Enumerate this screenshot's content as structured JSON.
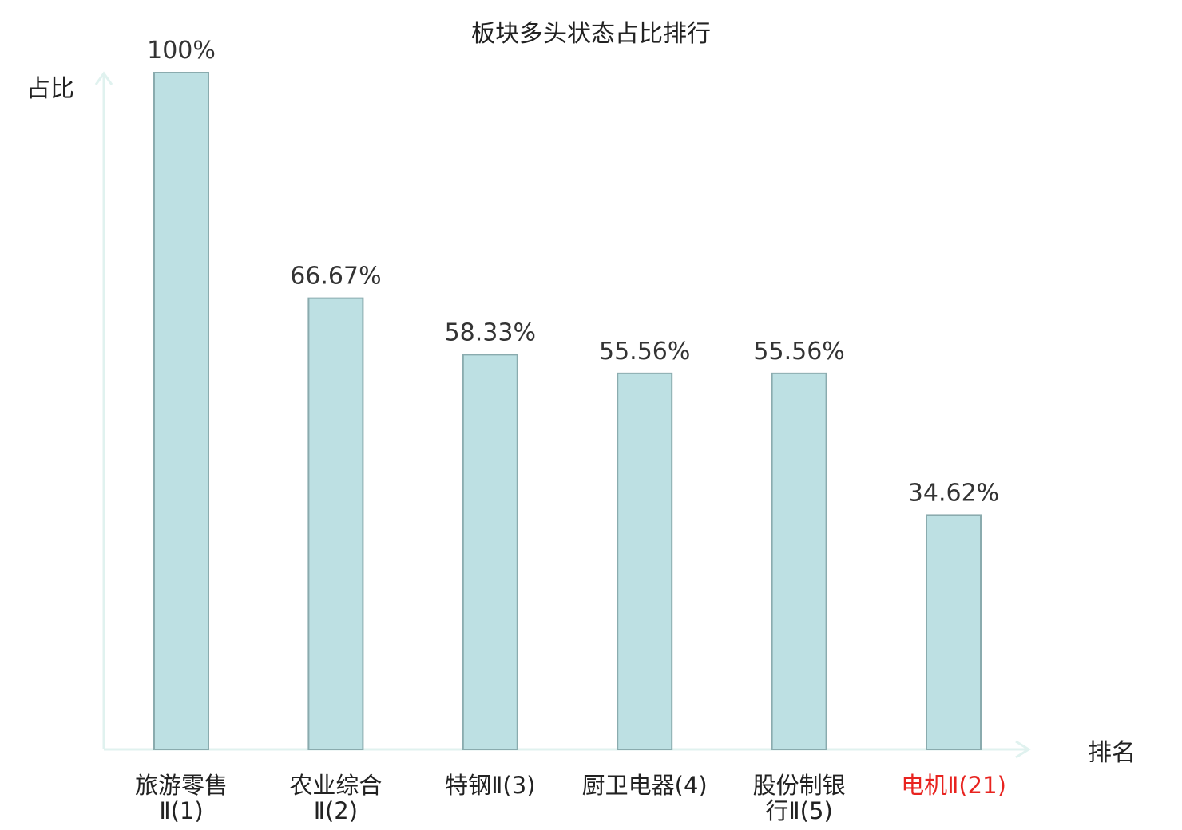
{
  "chart_data": {
    "type": "bar",
    "title": "板块多头状态占比排行",
    "ylabel": "占比",
    "xlabel": "排名",
    "ylim": [
      0,
      100
    ],
    "grid": false,
    "categories": [
      {
        "line1": "旅游零售",
        "line2": "Ⅱ(1)"
      },
      {
        "line1": "农业综合",
        "line2": "Ⅱ(2)"
      },
      {
        "line1": "特钢Ⅱ(3)",
        "line2": ""
      },
      {
        "line1": "厨卫电器(4)",
        "line2": ""
      },
      {
        "line1": "股份制银",
        "line2": "行Ⅱ(5)"
      },
      {
        "line1": "电机Ⅱ(21)",
        "line2": ""
      }
    ],
    "values": [
      100,
      66.67,
      58.33,
      55.56,
      55.56,
      34.62
    ],
    "value_labels": [
      "100%",
      "66.67%",
      "58.33%",
      "55.56%",
      "55.56%",
      "34.62%"
    ],
    "highlight_index": 5,
    "colors": {
      "bar_fill": "#bde0e3",
      "bar_stroke": "#8aabae",
      "axis": "#e0f2ef",
      "text": "#222222",
      "highlight_text": "#e8231f"
    }
  }
}
